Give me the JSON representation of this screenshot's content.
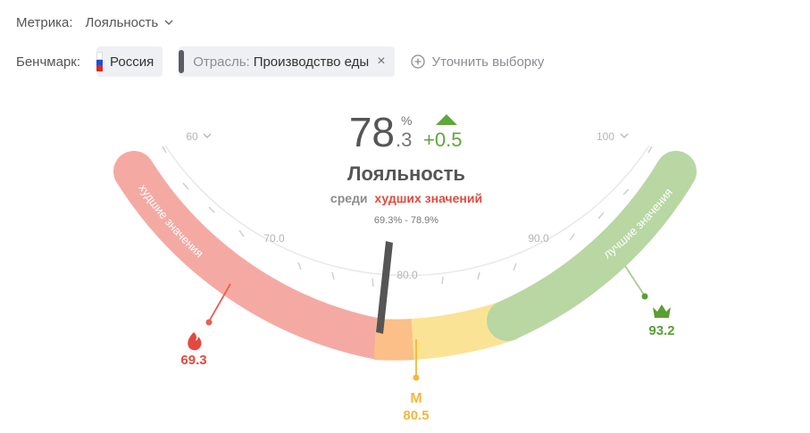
{
  "filters": {
    "metric_label": "Метрика:",
    "metric_value": "Лояльность",
    "benchmark_label": "Бенчмарк:",
    "country_chip": "Россия",
    "industry_prefix": "Отрасль:",
    "industry_value": "Производство еды",
    "close_symbol": "×",
    "refine_label": "Уточнить выборку"
  },
  "gauge": {
    "value_int": "78",
    "value_dec": ".3",
    "unit": "%",
    "delta": "+0.5",
    "metric_title": "Лояльность",
    "status_prefix": "среди",
    "status_highlight": "худших значений",
    "range_text": "69.3% - 78.9%",
    "worst_label": "худшие значения",
    "best_label": "лучшие значения",
    "scale_ticks": [
      "60",
      "70.0",
      "80.0",
      "90.0",
      "100"
    ],
    "worst_marker": "69.3",
    "median_letter": "M",
    "median_value": "80.5",
    "best_marker": "93.2",
    "needle_value": 78.3,
    "colors": {
      "worst": "#f4aaa3",
      "worst_strong": "#e95f55",
      "orange": "#fbbf87",
      "yellow": "#fbe395",
      "best": "#b8d7a3",
      "best_strong": "#a6cf8d",
      "delta_green": "#5ea83a",
      "worst_text": "#e24a3f",
      "median_text": "#f4b83d",
      "best_text": "#5b9e35",
      "needle": "#5a5a5a"
    }
  }
}
